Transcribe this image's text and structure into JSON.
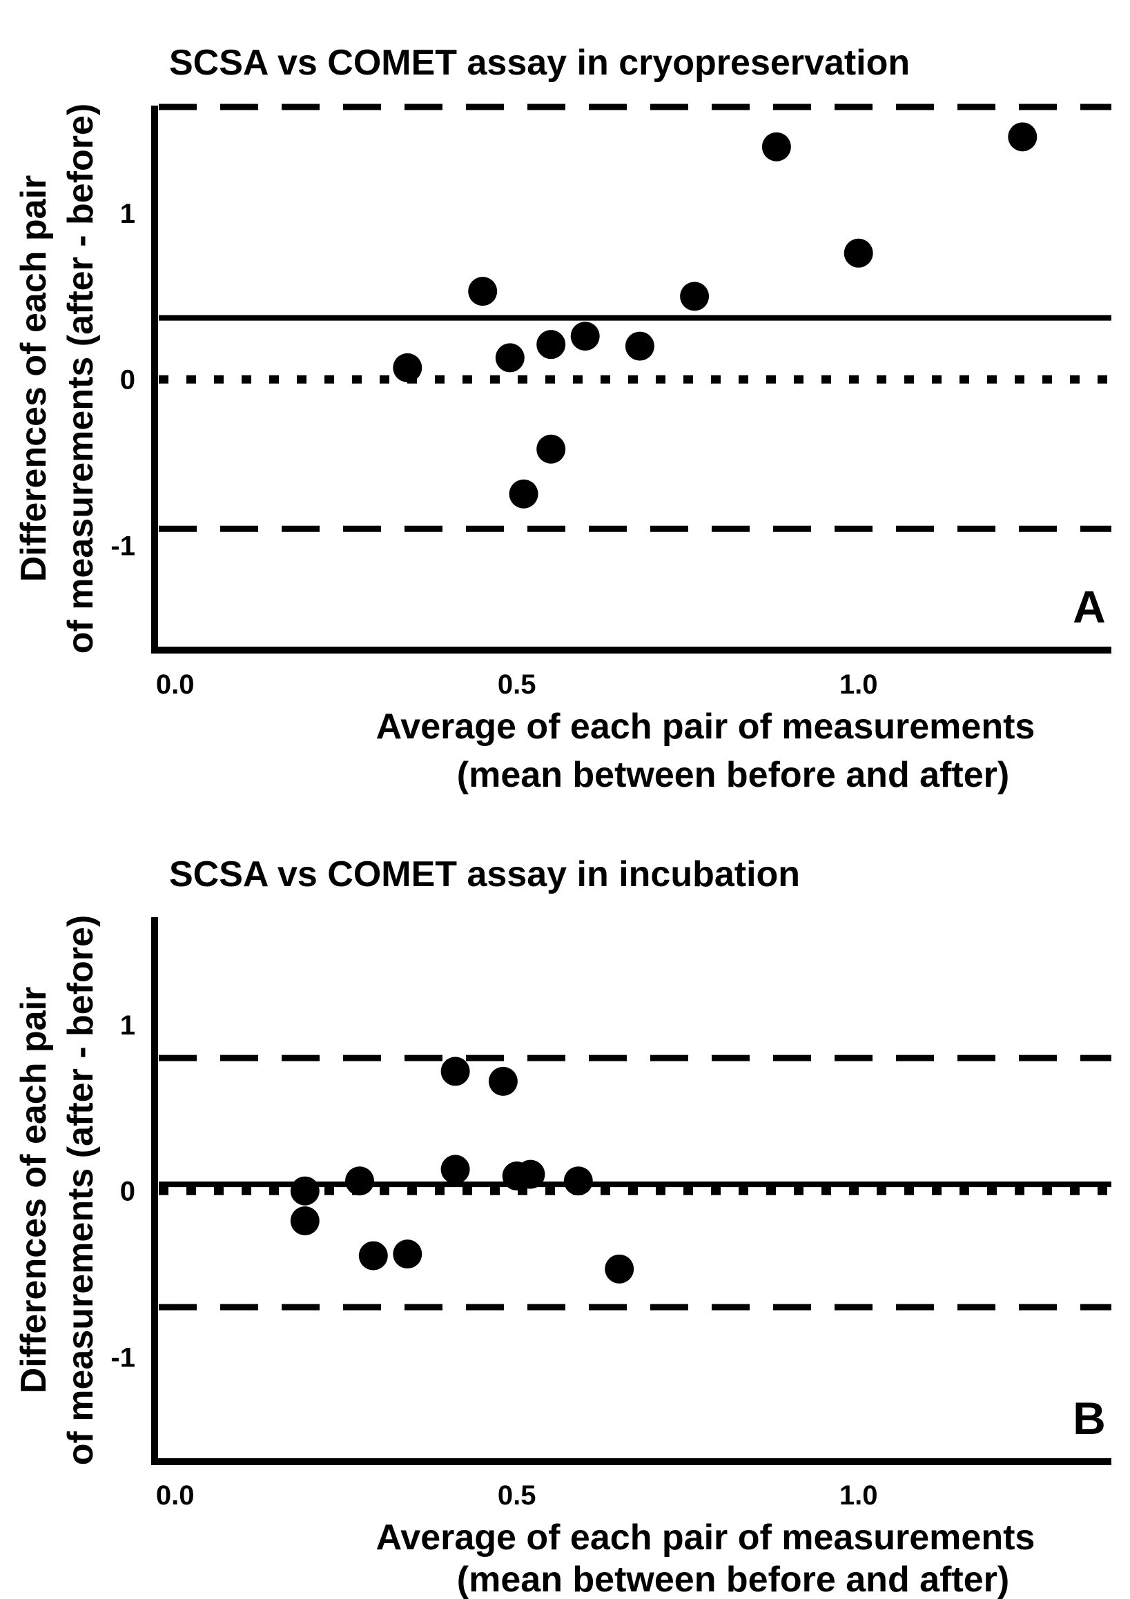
{
  "chart_data": [
    {
      "type": "scatter",
      "panel_label": "A",
      "title": "SCSA vs COMET assay in cryopreservation",
      "xlabel": [
        "Average of each pair of measurements",
        "(mean between before and after)"
      ],
      "ylabel": [
        "Differences of each pair",
        "of measurements (after - before)"
      ],
      "xlim": [
        -0.03,
        1.37
      ],
      "ylim": [
        -1.63,
        1.64
      ],
      "xticks": [
        0.0,
        0.5,
        1.0
      ],
      "xtick_labels": [
        "0.0",
        "0.5",
        "1.0"
      ],
      "yticks": [
        1,
        0,
        -1
      ],
      "ytick_labels": [
        "1",
        "0",
        "-1"
      ],
      "grid": false,
      "x": [
        0.34,
        0.45,
        0.49,
        0.51,
        0.55,
        0.55,
        0.6,
        0.68,
        0.76,
        0.88,
        1.0,
        1.24
      ],
      "y": [
        0.07,
        0.53,
        0.13,
        -0.69,
        0.21,
        -0.42,
        0.26,
        0.2,
        0.5,
        1.4,
        0.76,
        1.46
      ],
      "reference_lines": {
        "mean_difference": 0.37,
        "zero_line": 0,
        "upper_limit_of_agreement": 1.64,
        "lower_limit_of_agreement": -0.9
      }
    },
    {
      "type": "scatter",
      "panel_label": "B",
      "title": "SCSA vs COMET assay in incubation",
      "xlabel": [
        "Average of each pair of measurements",
        "(mean between before and after)"
      ],
      "ylabel": [
        "Differences of each pair",
        "of measurements (after - before)"
      ],
      "xlim": [
        -0.03,
        1.37
      ],
      "ylim": [
        -1.63,
        1.64
      ],
      "xticks": [
        0.0,
        0.5,
        1.0
      ],
      "xtick_labels": [
        "0.0",
        "0.5",
        "1.0"
      ],
      "yticks": [
        1,
        0,
        -1
      ],
      "ytick_labels": [
        "1",
        "0",
        "-1"
      ],
      "grid": false,
      "x": [
        0.19,
        0.19,
        0.27,
        0.29,
        0.34,
        0.41,
        0.41,
        0.48,
        0.5,
        0.52,
        0.59,
        0.65
      ],
      "y": [
        0.0,
        -0.18,
        0.06,
        -0.39,
        -0.38,
        0.72,
        0.13,
        0.66,
        0.09,
        0.1,
        0.06,
        -0.47
      ],
      "reference_lines": {
        "mean_difference": 0.04,
        "zero_line": 0,
        "upper_limit_of_agreement": 0.8,
        "lower_limit_of_agreement": -0.7
      }
    }
  ]
}
